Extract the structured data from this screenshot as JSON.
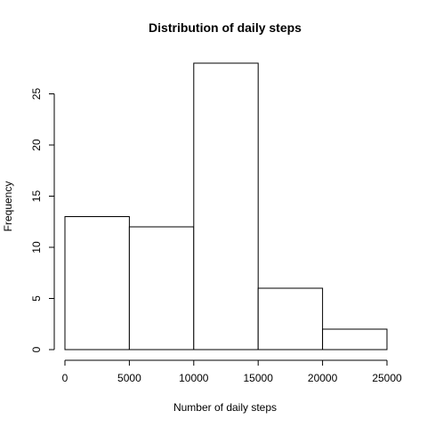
{
  "chart_data": {
    "type": "bar",
    "title": "Distribution of daily steps",
    "xlabel": "Number of daily steps",
    "ylabel": "Frequency",
    "bins": [
      {
        "start": 0,
        "end": 5000,
        "count": 13
      },
      {
        "start": 5000,
        "end": 10000,
        "count": 12
      },
      {
        "start": 10000,
        "end": 15000,
        "count": 28
      },
      {
        "start": 15000,
        "end": 20000,
        "count": 6
      },
      {
        "start": 20000,
        "end": 25000,
        "count": 2
      }
    ],
    "xlim": [
      0,
      25000
    ],
    "ylim": [
      0,
      28
    ],
    "x_ticks": [
      {
        "value": 0,
        "label": "0"
      },
      {
        "value": 5000,
        "label": "5000"
      },
      {
        "value": 10000,
        "label": "10000"
      },
      {
        "value": 15000,
        "label": "15000"
      },
      {
        "value": 20000,
        "label": "20000"
      },
      {
        "value": 25000,
        "label": "25000"
      }
    ],
    "y_ticks": [
      {
        "value": 0,
        "label": "0"
      },
      {
        "value": 5,
        "label": "5"
      },
      {
        "value": 10,
        "label": "10"
      },
      {
        "value": 15,
        "label": "15"
      },
      {
        "value": 20,
        "label": "20"
      },
      {
        "value": 25,
        "label": "25"
      }
    ],
    "grid": false,
    "colors": {
      "bar_fill": "#ffffff",
      "bar_stroke": "#000000"
    }
  }
}
